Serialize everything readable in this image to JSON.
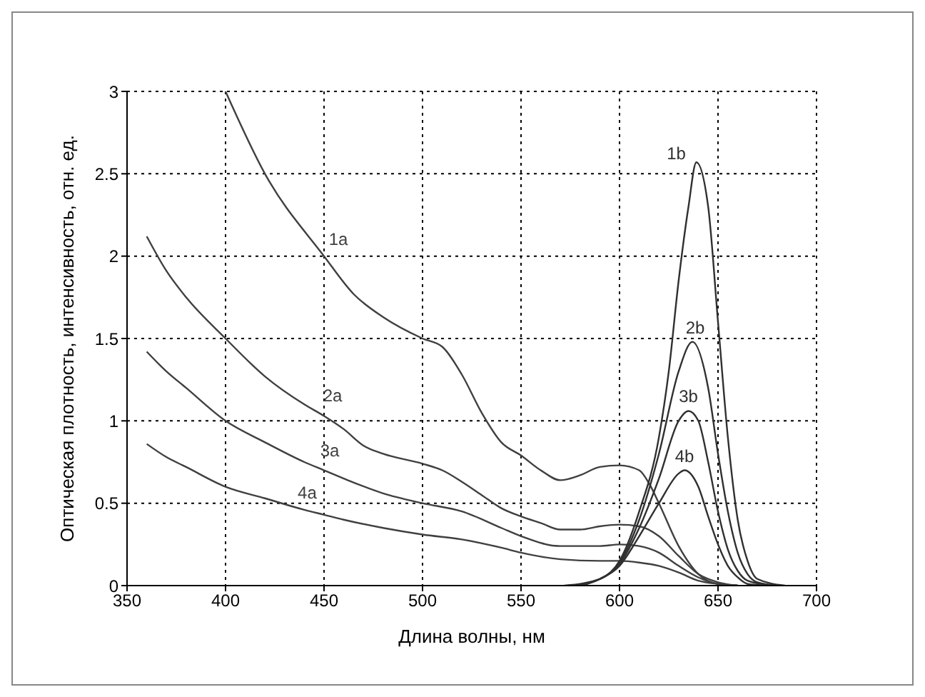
{
  "chart_data": {
    "type": "line",
    "xlabel": "Длина волны, нм",
    "ylabel": "Оптическая плотность, интенсивность, отн. ед.",
    "xlim": [
      350,
      700
    ],
    "xticks": [
      350,
      400,
      450,
      500,
      550,
      600,
      650,
      700
    ],
    "ylim": [
      0,
      3
    ],
    "yticks": [
      0,
      0.5,
      1,
      1.5,
      2,
      2.5,
      3
    ],
    "grid": true,
    "legend": false,
    "marker": "none",
    "line_style": "solid",
    "series": [
      {
        "name": "1a",
        "color": "#404040",
        "x": [
          400,
          420,
          450,
          465,
          480,
          500,
          510,
          520,
          530,
          540,
          550,
          560,
          570,
          580,
          590,
          600,
          610,
          615,
          620,
          630,
          640,
          650,
          660
        ],
        "values": [
          3,
          2.5,
          2,
          1.77,
          1.63,
          1.5,
          1.45,
          1.28,
          1.05,
          0.87,
          0.79,
          0.7,
          0.64,
          0.67,
          0.72,
          0.73,
          0.7,
          0.62,
          0.5,
          0.24,
          0.07,
          0.01,
          0
        ]
      },
      {
        "name": "2a",
        "color": "#404040",
        "x": [
          360,
          370,
          380,
          400,
          420,
          440,
          450,
          460,
          470,
          480,
          500,
          510,
          520,
          530,
          540,
          550,
          560,
          570,
          580,
          590,
          600,
          610,
          620,
          630,
          640,
          650,
          660
        ],
        "values": [
          2.12,
          1.91,
          1.75,
          1.5,
          1.27,
          1.1,
          1.03,
          0.95,
          0.85,
          0.8,
          0.74,
          0.7,
          0.63,
          0.55,
          0.47,
          0.42,
          0.38,
          0.34,
          0.34,
          0.36,
          0.37,
          0.36,
          0.3,
          0.18,
          0.07,
          0.02,
          0
        ]
      },
      {
        "name": "3a",
        "color": "#404040",
        "x": [
          360,
          370,
          380,
          400,
          420,
          440,
          450,
          460,
          480,
          500,
          520,
          540,
          550,
          570,
          590,
          600,
          610,
          620,
          630,
          640,
          650,
          660
        ],
        "values": [
          1.42,
          1.3,
          1.2,
          1,
          0.87,
          0.75,
          0.7,
          0.65,
          0.56,
          0.5,
          0.45,
          0.35,
          0.3,
          0.24,
          0.24,
          0.25,
          0.24,
          0.2,
          0.12,
          0.05,
          0.01,
          0
        ]
      },
      {
        "name": "4a",
        "color": "#404040",
        "x": [
          360,
          370,
          380,
          400,
          420,
          440,
          450,
          460,
          480,
          500,
          520,
          540,
          550,
          570,
          590,
          600,
          610,
          620,
          630,
          640,
          650,
          660
        ],
        "values": [
          0.86,
          0.78,
          0.72,
          0.6,
          0.53,
          0.46,
          0.43,
          0.4,
          0.35,
          0.31,
          0.28,
          0.23,
          0.2,
          0.16,
          0.15,
          0.15,
          0.14,
          0.12,
          0.08,
          0.03,
          0.01,
          0
        ]
      },
      {
        "name": "1b",
        "color": "#303030",
        "x": [
          572,
          590,
          600,
          610,
          620,
          625,
          630,
          635,
          639,
          645,
          650,
          655,
          660,
          665,
          670,
          684
        ],
        "values": [
          0,
          0.04,
          0.15,
          0.45,
          0.9,
          1.3,
          1.85,
          2.3,
          2.57,
          2.3,
          1.6,
          0.9,
          0.4,
          0.15,
          0.04,
          0
        ]
      },
      {
        "name": "2b",
        "color": "#303030",
        "x": [
          575,
          590,
          600,
          610,
          620,
          630,
          637,
          645,
          650,
          655,
          660,
          665,
          670,
          681
        ],
        "values": [
          0,
          0.04,
          0.14,
          0.4,
          0.8,
          1.3,
          1.48,
          1.2,
          0.8,
          0.45,
          0.2,
          0.07,
          0.02,
          0
        ]
      },
      {
        "name": "3b",
        "color": "#303030",
        "x": [
          578,
          590,
          600,
          610,
          620,
          630,
          635,
          640,
          645,
          650,
          655,
          660,
          665,
          678
        ],
        "values": [
          0,
          0.04,
          0.13,
          0.35,
          0.65,
          1,
          1.06,
          1,
          0.75,
          0.45,
          0.22,
          0.09,
          0.03,
          0
        ]
      },
      {
        "name": "4b",
        "color": "#303030",
        "x": [
          581,
          590,
          600,
          610,
          620,
          630,
          633,
          640,
          645,
          650,
          655,
          660,
          665,
          675
        ],
        "values": [
          0,
          0.04,
          0.12,
          0.3,
          0.5,
          0.68,
          0.7,
          0.6,
          0.42,
          0.25,
          0.12,
          0.05,
          0.01,
          0
        ]
      }
    ]
  }
}
